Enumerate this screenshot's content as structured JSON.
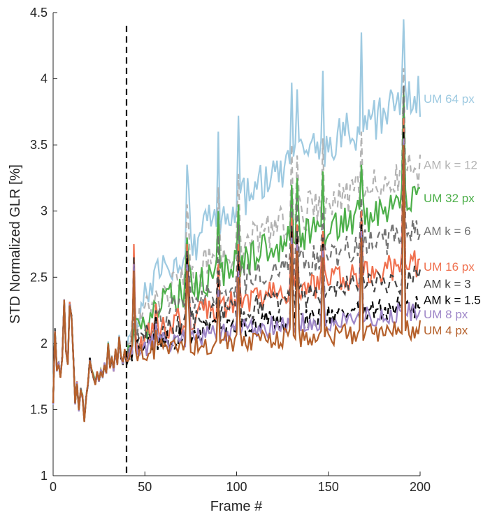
{
  "chart_data": {
    "type": "line",
    "title": "",
    "xlabel": "Frame #",
    "ylabel": "STD Normalized GLR [%]",
    "xlim": [
      0,
      200
    ],
    "ylim": [
      1,
      4.5
    ],
    "xticks": [
      0,
      50,
      100,
      150,
      200
    ],
    "yticks": [
      1,
      1.5,
      2,
      2.5,
      3,
      3.5,
      4,
      4.5
    ],
    "xtick_labels": [
      "0",
      "50",
      "100",
      "150",
      "200"
    ],
    "ytick_labels": [
      "1",
      "1.5",
      "2",
      "2.5",
      "3",
      "3.5",
      "4",
      "4.5"
    ],
    "grid": false,
    "legend": "labels at right end of each line",
    "vline": {
      "x": 40,
      "style": "dashed",
      "color": "#000000"
    },
    "x_step": 1,
    "series": [
      {
        "name": "UM 64 px",
        "color": "#9ecae1",
        "dash": false,
        "end": 3.87,
        "peak_amp": 0.17,
        "peaks": [
          [
            41,
            2.05
          ],
          [
            44,
            2.3
          ],
          [
            56,
            2.6
          ],
          [
            73,
            3.35
          ],
          [
            74,
            3.15
          ],
          [
            90,
            3.6
          ],
          [
            101,
            3.72
          ],
          [
            130,
            3.97
          ],
          [
            133,
            3.92
          ],
          [
            147,
            4.06
          ],
          [
            168,
            4.35
          ],
          [
            191,
            4.45
          ]
        ]
      },
      {
        "name": "AM k = 12",
        "color": "#b3b3b3",
        "dash": true,
        "end": 3.33,
        "peak_amp": 0.15,
        "peaks": [
          [
            41,
            2.0
          ],
          [
            44,
            2.2
          ],
          [
            56,
            2.4
          ],
          [
            73,
            3.05
          ],
          [
            74,
            2.85
          ],
          [
            90,
            3.18
          ],
          [
            101,
            3.28
          ],
          [
            130,
            3.5
          ],
          [
            133,
            3.42
          ],
          [
            147,
            3.55
          ],
          [
            168,
            3.6
          ],
          [
            191,
            4.08
          ]
        ]
      },
      {
        "name": "UM 32 px",
        "color": "#4daf4a",
        "dash": false,
        "end": 3.1,
        "peak_amp": 0.14,
        "peaks": [
          [
            41,
            1.98
          ],
          [
            44,
            2.1
          ],
          [
            56,
            2.3
          ],
          [
            73,
            2.8
          ],
          [
            74,
            2.6
          ],
          [
            90,
            3.0
          ],
          [
            101,
            3.05
          ],
          [
            130,
            3.2
          ],
          [
            133,
            3.25
          ],
          [
            147,
            3.3
          ],
          [
            168,
            3.35
          ],
          [
            191,
            3.92
          ]
        ]
      },
      {
        "name": "AM k = 6",
        "color": "#737373",
        "dash": true,
        "end": 2.85,
        "peak_amp": 0.12,
        "peaks": [
          [
            41,
            1.95
          ],
          [
            44,
            2.2
          ],
          [
            56,
            2.25
          ],
          [
            73,
            2.7
          ],
          [
            74,
            2.55
          ],
          [
            90,
            2.82
          ],
          [
            101,
            2.9
          ],
          [
            130,
            3.05
          ],
          [
            133,
            3.1
          ],
          [
            147,
            3.0
          ],
          [
            168,
            3.1
          ],
          [
            191,
            3.95
          ]
        ]
      },
      {
        "name": "UM 16 px",
        "color": "#f0704e",
        "dash": false,
        "end": 2.6,
        "peak_amp": 0.11,
        "peaks": [
          [
            41,
            1.92
          ],
          [
            44,
            2.75
          ],
          [
            56,
            2.3
          ],
          [
            73,
            2.75
          ],
          [
            74,
            2.45
          ],
          [
            90,
            2.6
          ],
          [
            101,
            2.75
          ],
          [
            130,
            2.95
          ],
          [
            133,
            2.9
          ],
          [
            147,
            2.85
          ],
          [
            168,
            3.0
          ],
          [
            191,
            3.7
          ]
        ]
      },
      {
        "name": "AM k = 3",
        "color": "#444444",
        "dash": true,
        "end": 2.5,
        "peak_amp": 0.1,
        "peaks": [
          [
            41,
            1.9
          ],
          [
            44,
            2.65
          ],
          [
            56,
            2.25
          ],
          [
            73,
            2.7
          ],
          [
            74,
            2.4
          ],
          [
            90,
            2.55
          ],
          [
            101,
            2.7
          ],
          [
            130,
            2.9
          ],
          [
            133,
            2.85
          ],
          [
            147,
            2.8
          ],
          [
            168,
            2.95
          ],
          [
            191,
            3.65
          ]
        ]
      },
      {
        "name": "AM k = 1.5",
        "color": "#000000",
        "dash": true,
        "end": 2.28,
        "peak_amp": 0.09,
        "peaks": [
          [
            41,
            1.88
          ],
          [
            44,
            2.6
          ],
          [
            56,
            2.2
          ],
          [
            73,
            2.65
          ],
          [
            74,
            2.35
          ],
          [
            90,
            2.45
          ],
          [
            101,
            2.6
          ],
          [
            130,
            2.85
          ],
          [
            133,
            2.8
          ],
          [
            147,
            2.75
          ],
          [
            168,
            2.9
          ],
          [
            191,
            3.6
          ]
        ]
      },
      {
        "name": "UM 8 px",
        "color": "#9e86c8",
        "dash": false,
        "end": 2.24,
        "peak_amp": 0.08,
        "peaks": [
          [
            41,
            1.88
          ],
          [
            44,
            2.6
          ],
          [
            56,
            2.15
          ],
          [
            73,
            2.6
          ],
          [
            74,
            2.3
          ],
          [
            90,
            2.4
          ],
          [
            101,
            2.55
          ],
          [
            130,
            2.8
          ],
          [
            133,
            2.75
          ],
          [
            147,
            2.7
          ],
          [
            168,
            2.85
          ],
          [
            191,
            3.55
          ]
        ]
      },
      {
        "name": "UM 4 px",
        "color": "#b5602b",
        "dash": false,
        "end": 2.1,
        "peak_amp": 0.08,
        "peaks": [
          [
            41,
            1.87
          ],
          [
            44,
            2.55
          ],
          [
            56,
            2.1
          ],
          [
            73,
            2.55
          ],
          [
            74,
            2.25
          ],
          [
            90,
            2.35
          ],
          [
            101,
            2.5
          ],
          [
            130,
            2.75
          ],
          [
            133,
            2.7
          ],
          [
            147,
            2.65
          ],
          [
            168,
            2.8
          ],
          [
            191,
            3.5
          ]
        ]
      }
    ],
    "shared_start": {
      "note_values": [
        [
          0,
          1.55
        ],
        [
          1,
          2.1
        ],
        [
          2,
          1.8
        ],
        [
          3,
          1.85
        ],
        [
          4,
          1.75
        ],
        [
          5,
          1.9
        ],
        [
          6,
          2.32
        ],
        [
          7,
          1.95
        ],
        [
          8,
          1.85
        ],
        [
          9,
          2.3
        ],
        [
          10,
          2.2
        ],
        [
          11,
          1.9
        ],
        [
          12,
          1.55
        ],
        [
          13,
          1.7
        ],
        [
          14,
          1.5
        ],
        [
          15,
          1.65
        ],
        [
          16,
          1.6
        ],
        [
          17,
          1.42
        ],
        [
          18,
          1.6
        ],
        [
          19,
          1.7
        ],
        [
          20,
          1.88
        ],
        [
          21,
          1.8
        ],
        [
          22,
          1.75
        ],
        [
          23,
          1.7
        ],
        [
          24,
          1.78
        ],
        [
          25,
          1.72
        ],
        [
          26,
          1.8
        ],
        [
          27,
          1.75
        ],
        [
          28,
          1.85
        ],
        [
          29,
          1.78
        ],
        [
          30,
          2.0
        ],
        [
          31,
          1.82
        ],
        [
          32,
          1.9
        ],
        [
          33,
          1.8
        ],
        [
          34,
          1.95
        ],
        [
          35,
          1.85
        ],
        [
          36,
          2.05
        ],
        [
          37,
          1.9
        ],
        [
          38,
          1.85
        ],
        [
          39,
          1.95
        ],
        [
          40,
          1.85
        ]
      ]
    }
  }
}
